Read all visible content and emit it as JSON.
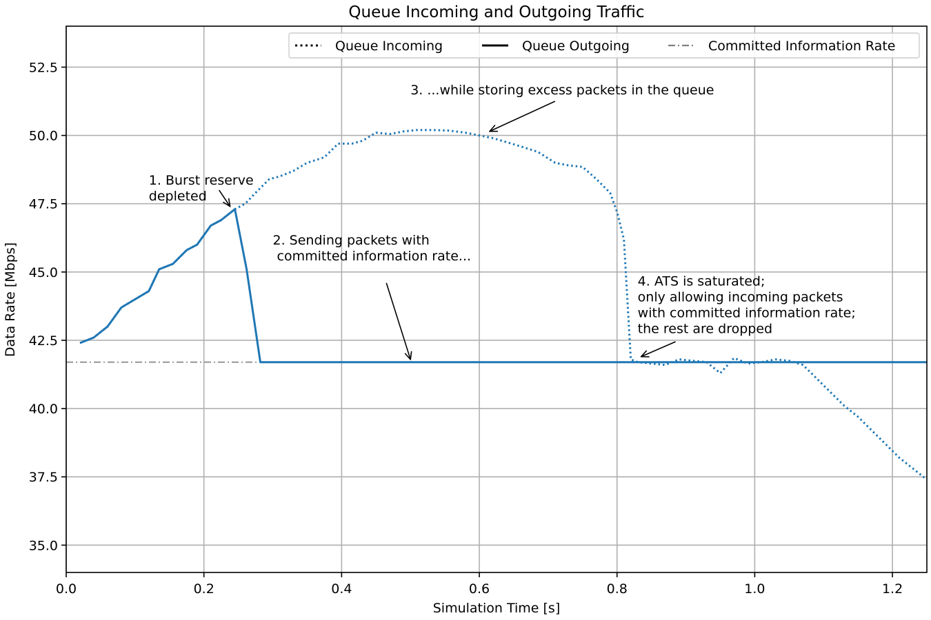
{
  "chart_data": {
    "type": "line",
    "title": "Queue Incoming and Outgoing Traffic",
    "xlabel": "Simulation Time [s]",
    "ylabel": "Data Rate [Mbps]",
    "xlim": [
      0.0,
      1.25
    ],
    "ylim": [
      34.0,
      54.0
    ],
    "xticks": [
      0.0,
      0.2,
      0.4,
      0.6,
      0.8,
      1.0,
      1.2
    ],
    "xtick_labels": [
      "0.0",
      "0.2",
      "0.4",
      "0.6",
      "0.8",
      "1.0",
      "1.2"
    ],
    "yticks": [
      35.0,
      37.5,
      40.0,
      42.5,
      45.0,
      47.5,
      50.0,
      52.5
    ],
    "ytick_labels": [
      "35.0",
      "37.5",
      "40.0",
      "42.5",
      "45.0",
      "47.5",
      "50.0",
      "52.5"
    ],
    "grid": true,
    "legend_position": "top-right",
    "series_color": "#1f77b4",
    "cir_color": "#808080",
    "legend": [
      {
        "label": "Queue Incoming",
        "style": "dotted",
        "color": "#000000"
      },
      {
        "label": "Queue Outgoing",
        "style": "solid",
        "color": "#000000"
      },
      {
        "label": "Committed Information Rate",
        "style": "dashdot",
        "color": "#808080"
      }
    ],
    "series": [
      {
        "name": "Queue Incoming",
        "style": "dotted",
        "x": [
          0.02,
          0.04,
          0.06,
          0.08,
          0.1,
          0.12,
          0.135,
          0.155,
          0.175,
          0.19,
          0.21,
          0.225,
          0.245,
          0.26,
          0.275,
          0.295,
          0.31,
          0.33,
          0.35,
          0.375,
          0.395,
          0.415,
          0.43,
          0.45,
          0.47,
          0.49,
          0.51,
          0.53,
          0.555,
          0.58,
          0.6,
          0.62,
          0.64,
          0.66,
          0.685,
          0.71,
          0.73,
          0.75,
          0.77,
          0.79,
          0.8,
          0.81,
          0.82,
          0.83,
          0.85,
          0.87,
          0.89,
          0.91,
          0.93,
          0.95,
          0.97,
          0.99,
          1.01,
          1.03,
          1.05,
          1.07,
          1.09,
          1.11,
          1.13,
          1.15,
          1.17,
          1.19,
          1.21,
          1.23,
          1.25
        ],
        "y": [
          42.4,
          42.6,
          43.0,
          43.7,
          44.0,
          44.3,
          45.1,
          45.3,
          45.8,
          46.0,
          46.7,
          46.9,
          47.3,
          47.5,
          47.9,
          48.4,
          48.5,
          48.7,
          49.0,
          49.2,
          49.7,
          49.7,
          49.8,
          50.1,
          50.05,
          50.15,
          50.2,
          50.2,
          50.18,
          50.1,
          50.0,
          49.9,
          49.75,
          49.6,
          49.4,
          49.0,
          48.9,
          48.85,
          48.4,
          47.9,
          47.2,
          46.2,
          41.8,
          41.7,
          41.65,
          41.6,
          41.8,
          41.75,
          41.7,
          41.3,
          41.85,
          41.65,
          41.7,
          41.8,
          41.75,
          41.6,
          41.1,
          40.6,
          40.1,
          39.7,
          39.2,
          38.7,
          38.2,
          37.8,
          37.4
        ]
      },
      {
        "name": "Queue Outgoing",
        "style": "solid",
        "x": [
          0.02,
          0.04,
          0.06,
          0.08,
          0.1,
          0.12,
          0.135,
          0.155,
          0.175,
          0.19,
          0.21,
          0.225,
          0.245,
          0.262,
          0.282,
          0.4,
          0.6,
          0.8,
          1.0,
          1.25
        ],
        "y": [
          42.4,
          42.6,
          43.0,
          43.7,
          44.0,
          44.3,
          45.1,
          45.3,
          45.8,
          46.0,
          46.7,
          46.9,
          47.3,
          45.1,
          41.7,
          41.7,
          41.7,
          41.7,
          41.7,
          41.7
        ]
      },
      {
        "name": "Committed Information Rate",
        "style": "dashdot",
        "x": [
          0.0,
          1.25
        ],
        "y": [
          41.7,
          41.7
        ]
      }
    ],
    "annotations": [
      {
        "lines": [
          "1. Burst reserve",
          "depleted"
        ],
        "text_at": [
          0.12,
          48.2
        ],
        "arrow_to": [
          0.238,
          47.4
        ],
        "arrow_from": [
          0.222,
          48.0
        ]
      },
      {
        "lines": [
          "2. Sending packets with",
          " committed information rate..."
        ],
        "text_at": [
          0.3,
          46.0
        ],
        "arrow_to": [
          0.5,
          41.8
        ],
        "arrow_from": [
          0.465,
          44.6
        ]
      },
      {
        "lines": [
          "3. ...while storing excess packets in the queue"
        ],
        "text_at": [
          0.5,
          51.5
        ],
        "arrow_to": [
          0.615,
          50.15
        ],
        "arrow_from": [
          0.71,
          51.25
        ]
      },
      {
        "lines": [
          "4. ATS is saturated;",
          "only allowing incoming packets",
          "with committed information rate;",
          "the rest are dropped"
        ],
        "text_at": [
          0.83,
          44.5
        ],
        "arrow_to": [
          0.835,
          41.9
        ],
        "arrow_from": [
          0.885,
          42.45
        ]
      }
    ]
  }
}
